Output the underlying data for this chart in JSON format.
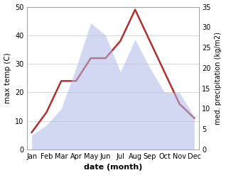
{
  "months": [
    "Jan",
    "Feb",
    "Mar",
    "Apr",
    "May",
    "Jun",
    "Jul",
    "Aug",
    "Sep",
    "Oct",
    "Nov",
    "Dec"
  ],
  "temperature": [
    6,
    13,
    24,
    24,
    32,
    32,
    38,
    49,
    38,
    27,
    16,
    11
  ],
  "precipitation": [
    3.5,
    6,
    10,
    20,
    31,
    28,
    19,
    27,
    20,
    14,
    14,
    8
  ],
  "temp_ylim": [
    0,
    50
  ],
  "precip_ylim": [
    0,
    35
  ],
  "temp_color": "#b03030",
  "precip_fill_color": "#b0b8e8",
  "xlabel": "date (month)",
  "ylabel_left": "max temp (C)",
  "ylabel_right": "med. precipitation (kg/m2)",
  "temp_linewidth": 1.8,
  "background_color": "#ffffff"
}
